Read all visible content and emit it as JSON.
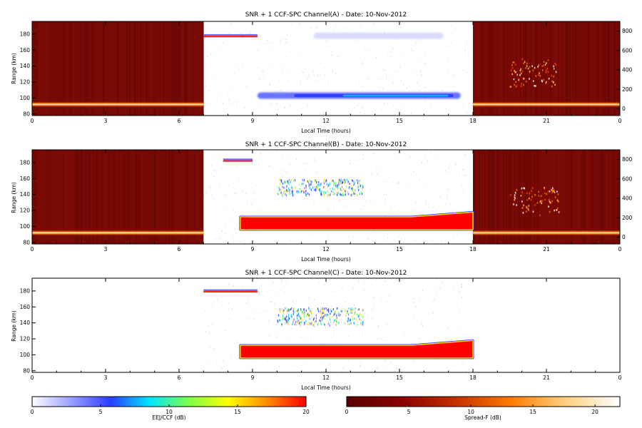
{
  "chart_data": [
    {
      "type": "heatmap",
      "title": "SNR + 1 CCF-SPC Channel(A) - Date: 10-Nov-2012",
      "xlabel": "Local Time (hours)",
      "ylabel": "Range (km)",
      "xlim": [
        0,
        24
      ],
      "ylim": [
        78,
        196
      ],
      "x_ticks": [
        "0",
        "3",
        "6",
        "9",
        "12",
        "15",
        "18",
        "21",
        "0"
      ],
      "y_ticks": [
        "80",
        "100",
        "120",
        "140",
        "160",
        "180"
      ],
      "y2_ticks": [
        "0",
        "200",
        "400",
        "600",
        "800"
      ],
      "night_shading": [
        [
          0,
          7
        ],
        [
          18,
          24
        ]
      ],
      "features": [
        {
          "type": "night-band",
          "t0": 0,
          "t1": 7,
          "range": 92,
          "intensity": 0.9
        },
        {
          "type": "night-band",
          "t0": 18,
          "t1": 24,
          "range": 92,
          "intensity": 0.85
        },
        {
          "type": "day-band",
          "t0": 9.2,
          "t1": 17.5,
          "range": 103,
          "thickness": 4,
          "peak_db": 7
        },
        {
          "type": "day-band",
          "t0": 11.5,
          "t1": 16.8,
          "range": 178,
          "thickness": 4,
          "peak_db": 1
        },
        {
          "type": "day-strip",
          "t0": 7,
          "t1": 9.2,
          "range": 178,
          "thickness": 2
        },
        {
          "type": "spread-f-cluster",
          "t0": 19.5,
          "t1": 21.5,
          "range0": 115,
          "range1": 150
        }
      ]
    },
    {
      "type": "heatmap",
      "title": "SNR + 1 CCF-SPC Channel(B) - Date: 10-Nov-2012",
      "xlabel": "Local Time (hours)",
      "ylabel": "Range (km)",
      "xlim": [
        0,
        24
      ],
      "ylim": [
        78,
        196
      ],
      "x_ticks": [
        "0",
        "3",
        "6",
        "9",
        "12",
        "15",
        "18",
        "21",
        "0"
      ],
      "y_ticks": [
        "80",
        "100",
        "120",
        "140",
        "160",
        "180"
      ],
      "y2_ticks": [
        "0",
        "200",
        "400",
        "600",
        "800"
      ],
      "night_shading": [
        [
          0,
          7
        ],
        [
          18,
          24
        ]
      ],
      "features": [
        {
          "type": "night-band",
          "t0": 0,
          "t1": 7,
          "range": 92,
          "intensity": 0.9
        },
        {
          "type": "night-band",
          "t0": 18,
          "t1": 24,
          "range": 92,
          "intensity": 0.85
        },
        {
          "type": "saturated-band",
          "t0": 8.5,
          "t1": 18,
          "range": 104,
          "thickness": 8
        },
        {
          "type": "scatter-cloud",
          "t0": 10,
          "t1": 13.5,
          "range0": 140,
          "range1": 160
        },
        {
          "type": "day-strip",
          "t0": 7.8,
          "t1": 9,
          "range": 183,
          "thickness": 2
        },
        {
          "type": "spread-f-cluster",
          "t0": 19.5,
          "t1": 21.5,
          "range0": 115,
          "range1": 150
        }
      ]
    },
    {
      "type": "heatmap",
      "title": "SNR + 1 CCF-SPC Channel(C) - Date: 10-Nov-2012",
      "xlabel": "Local Time (hours)",
      "ylabel": "Range (km)",
      "xlim": [
        0,
        24
      ],
      "ylim": [
        78,
        196
      ],
      "x_ticks": [
        "0",
        "3",
        "6",
        "9",
        "12",
        "15",
        "18",
        "21",
        "0"
      ],
      "y_ticks": [
        "80",
        "100",
        "120",
        "140",
        "160",
        "180"
      ],
      "y2_ticks": [],
      "night_shading": [],
      "features": [
        {
          "type": "saturated-band",
          "t0": 8.5,
          "t1": 18,
          "range": 104,
          "thickness": 8
        },
        {
          "type": "scatter-cloud",
          "t0": 10,
          "t1": 13.5,
          "range0": 138,
          "range1": 160
        },
        {
          "type": "day-strip",
          "t0": 7,
          "t1": 9.2,
          "range": 180,
          "thickness": 2
        }
      ]
    }
  ],
  "colorbars": [
    {
      "label": "EEJ/CCF (dB)",
      "ticks": [
        "0",
        "5",
        "10",
        "15",
        "20"
      ],
      "range": [
        0,
        20
      ],
      "colors": [
        "#ffffff",
        "#9aa0ff",
        "#2a3cff",
        "#00e5ff",
        "#7dff4a",
        "#ffff00",
        "#ff8c00",
        "#ff0000"
      ]
    },
    {
      "label": "Spread-F (dB)",
      "ticks": [
        "0",
        "5",
        "10",
        "15",
        "20"
      ],
      "range": [
        0,
        22
      ],
      "colors": [
        "#5a0000",
        "#8b0000",
        "#c43000",
        "#ff7a00",
        "#ffd080",
        "#ffffff"
      ]
    }
  ],
  "colors": {
    "night_background": "#7a0a06",
    "day_background": "#ffffff"
  }
}
